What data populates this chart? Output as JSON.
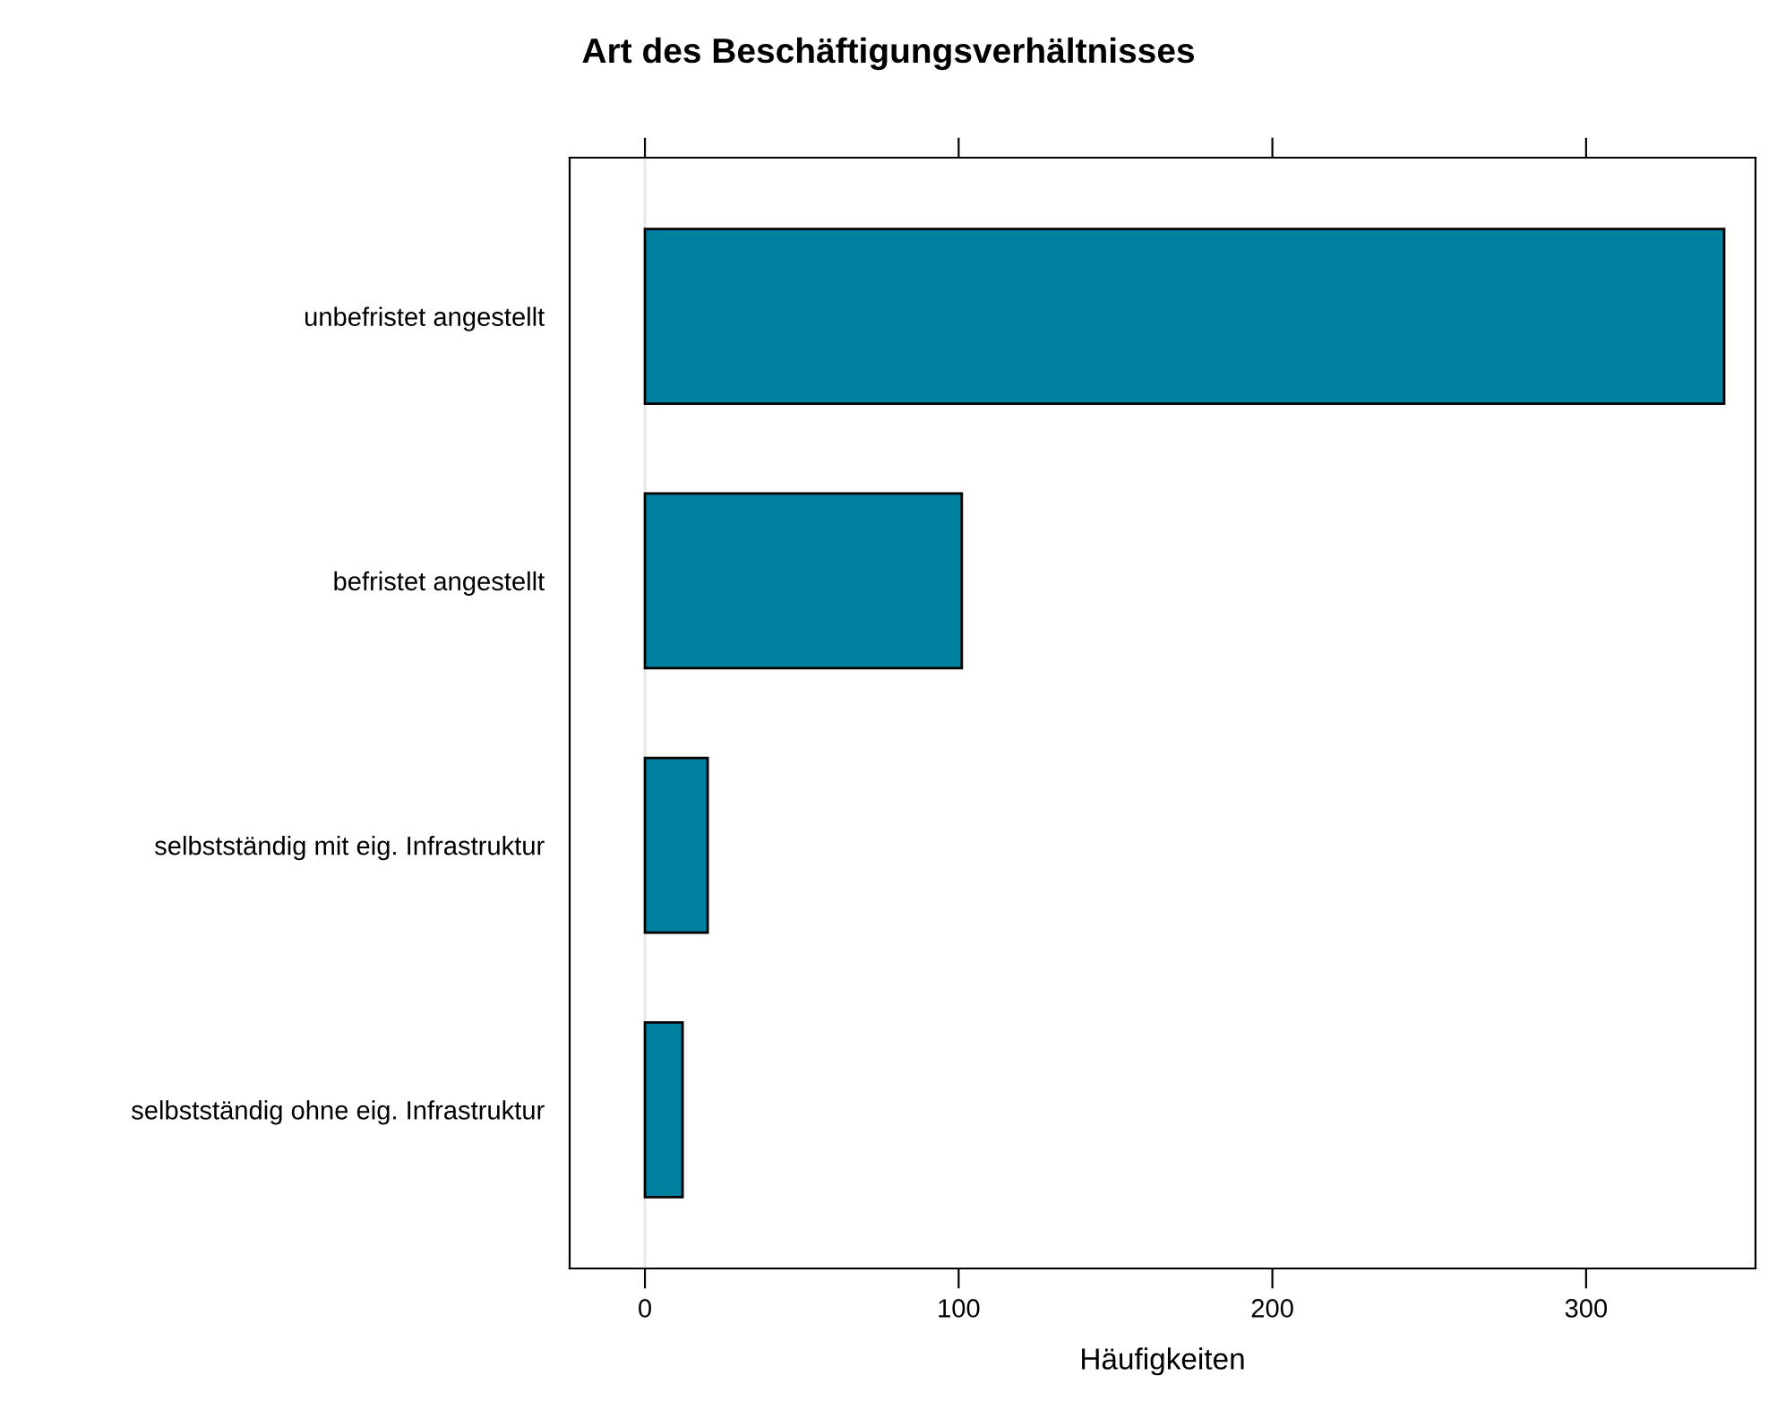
{
  "chart_data": {
    "type": "bar",
    "orientation": "horizontal",
    "title": "Art des Beschäftigungsverhältnisses",
    "xlabel": "Häufigkeiten",
    "categories": [
      "unbefristet angestellt",
      "befristet angestellt",
      "selbstständig mit eig. Infrastruktur",
      "selbstständig ohne eig. Infrastruktur"
    ],
    "values": [
      344,
      101,
      20,
      12
    ],
    "color": "#0081a0",
    "xlim": [
      -24,
      354
    ],
    "xticks": [
      0,
      100,
      200,
      300
    ],
    "ref_lines": [
      {
        "axis": "x",
        "value": 0,
        "color": "#e6e6e6"
      }
    ],
    "grid": false,
    "legend": false
  }
}
